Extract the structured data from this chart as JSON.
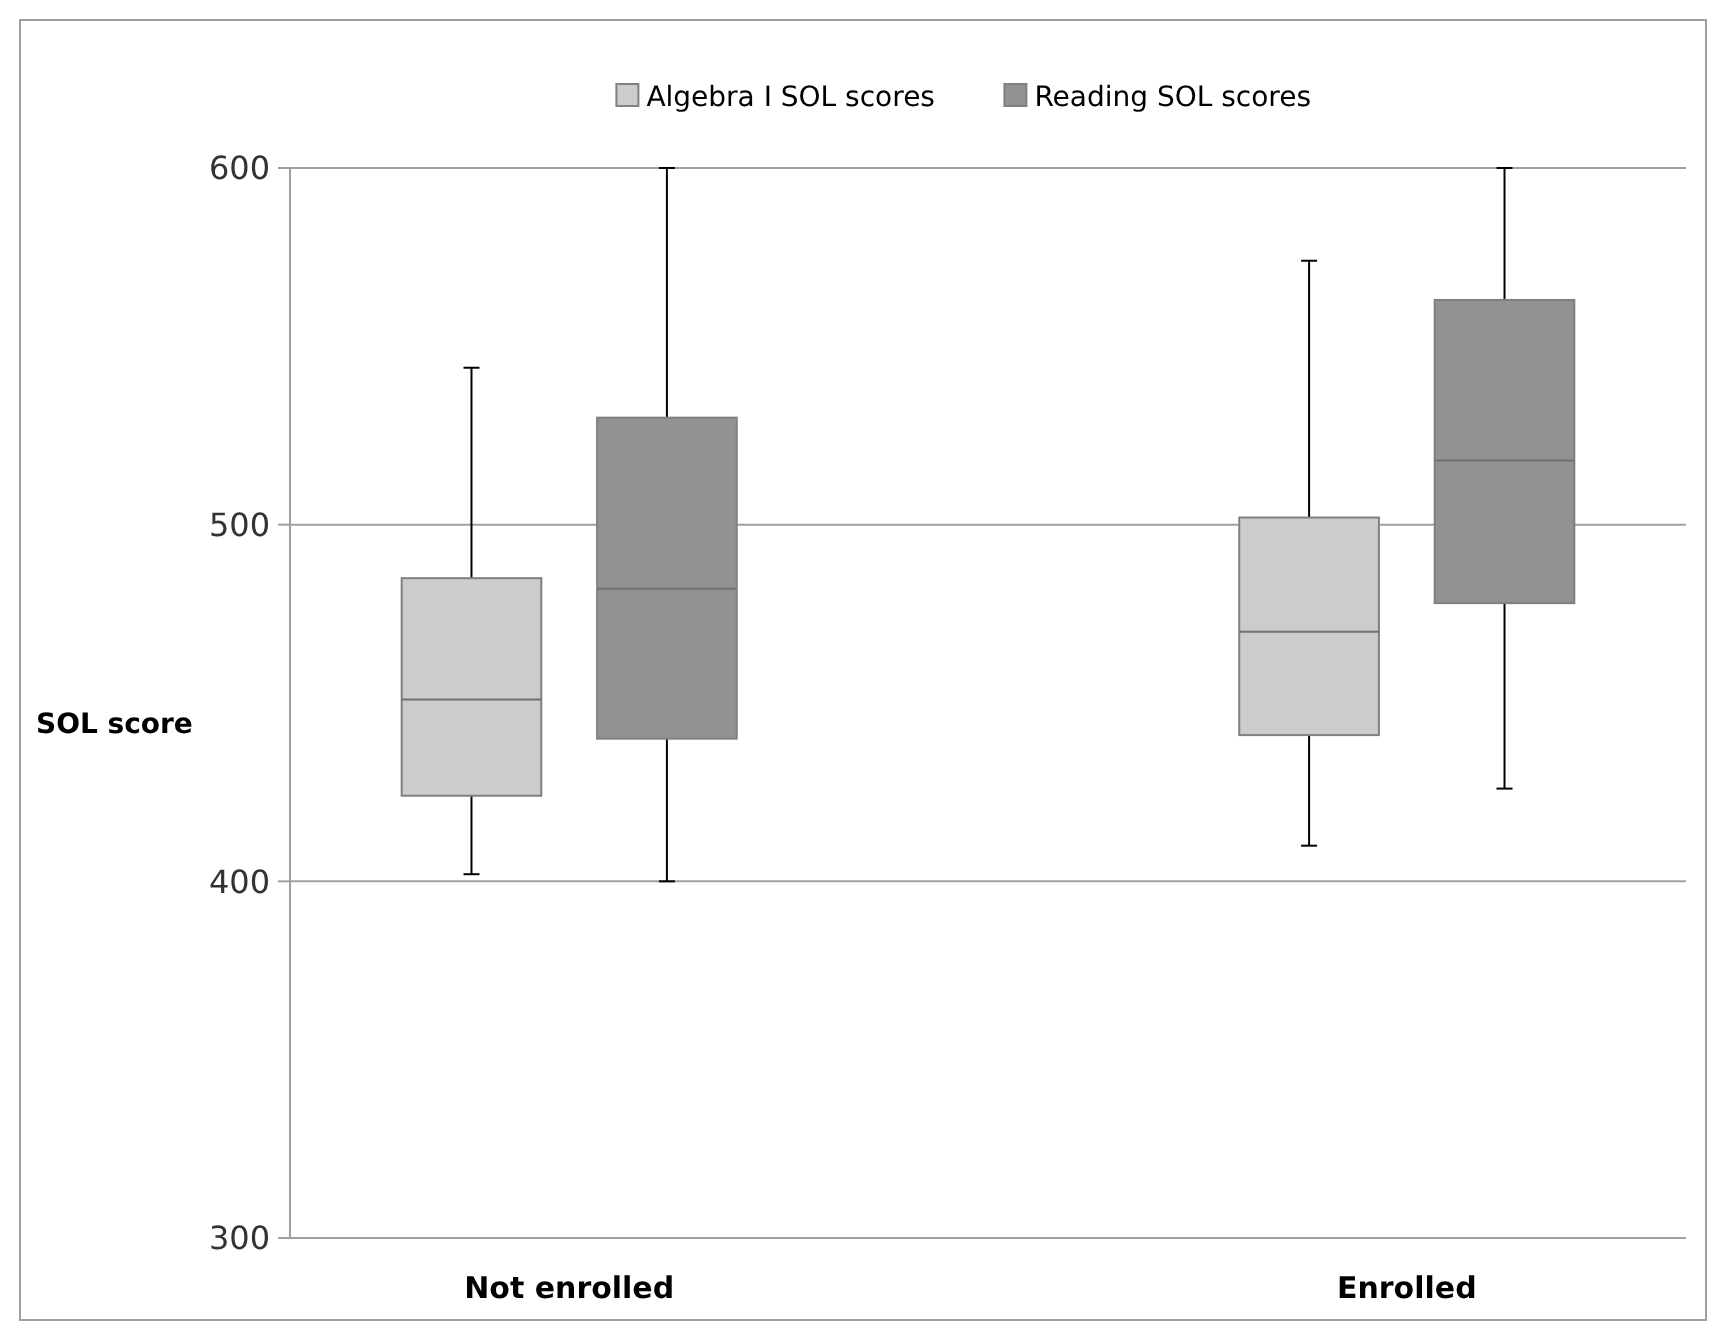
{
  "chart_data": {
    "type": "box",
    "ylabel": "SOL score",
    "categories": [
      "Not enrolled",
      "Enrolled"
    ],
    "series": [
      {
        "name": "Algebra I SOL scores",
        "color": "#cccccc",
        "boxes": [
          {
            "low": 402,
            "q1": 424,
            "median": 451,
            "q3": 485,
            "high": 544
          },
          {
            "low": 410,
            "q1": 441,
            "median": 470,
            "q3": 502,
            "high": 574
          }
        ]
      },
      {
        "name": "Reading SOL scores",
        "color": "#929292",
        "boxes": [
          {
            "low": 400,
            "q1": 440,
            "median": 482,
            "q3": 530,
            "high": 600
          },
          {
            "low": 426,
            "q1": 478,
            "median": 518,
            "q3": 563,
            "high": 600
          }
        ]
      }
    ],
    "ylim": [
      300,
      600
    ],
    "yticks": [
      300,
      400,
      500,
      600
    ],
    "grid": "y",
    "legend": "top"
  }
}
